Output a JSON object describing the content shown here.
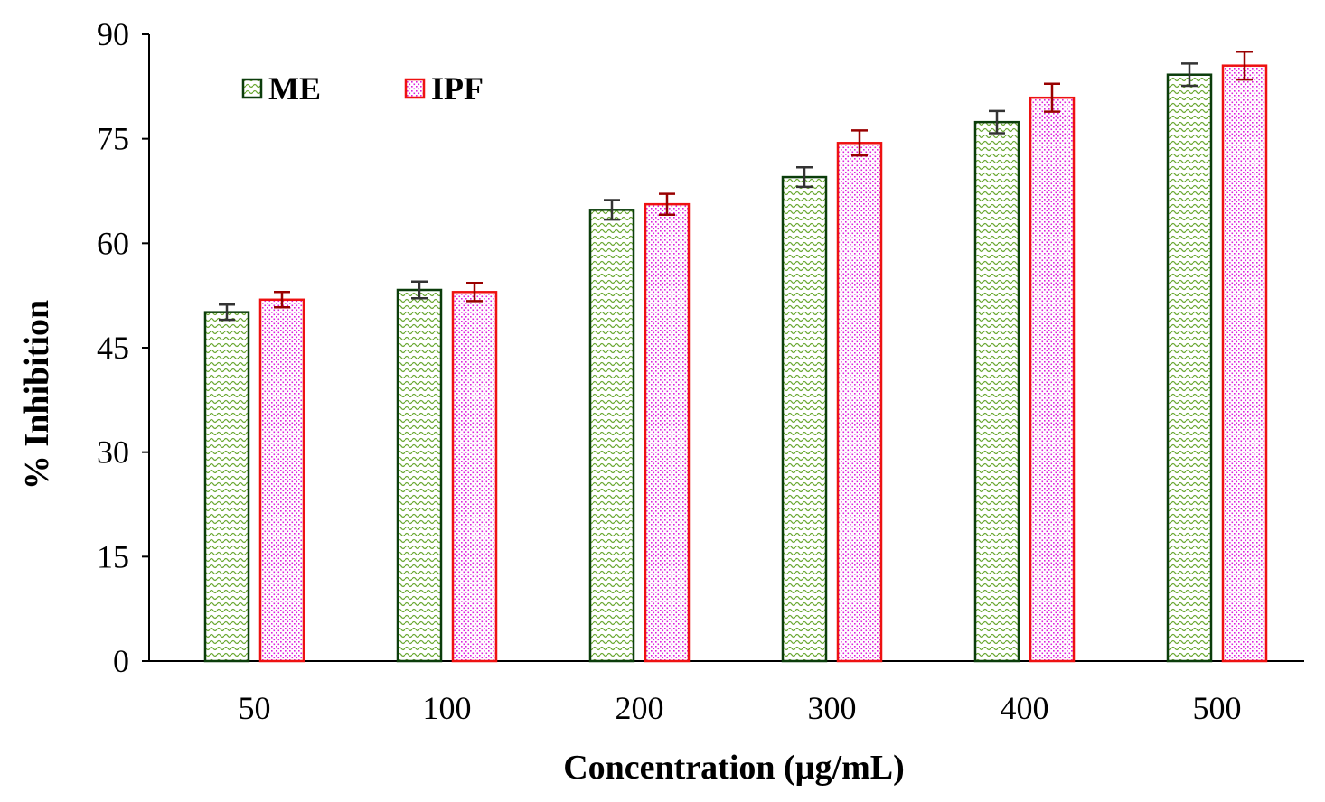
{
  "chart_data": {
    "type": "bar",
    "title": "",
    "xlabel": "Concentration (µg/mL)",
    "ylabel": "% Inhibition",
    "ylim": [
      0,
      90
    ],
    "yticks": [
      0,
      15,
      30,
      45,
      60,
      75,
      90
    ],
    "grid": false,
    "legend_position": "top-left",
    "categories": [
      "50",
      "100",
      "200",
      "300",
      "400",
      "500"
    ],
    "series": [
      {
        "name": "ME",
        "values": [
          50.1,
          53.3,
          64.8,
          69.5,
          77.4,
          84.2
        ],
        "errors": [
          1.1,
          1.2,
          1.4,
          1.4,
          1.6,
          1.6
        ],
        "stroke": "#0b3d0b",
        "pattern_color": "#6aa832",
        "error_color": "#333333",
        "pattern": "wave"
      },
      {
        "name": "IPF",
        "values": [
          51.9,
          53.0,
          65.6,
          74.4,
          80.9,
          85.5
        ],
        "errors": [
          1.1,
          1.3,
          1.5,
          1.8,
          2.0,
          2.0
        ],
        "stroke": "#ee1111",
        "pattern_color": "#dd22dd",
        "error_color": "#990000",
        "pattern": "dots"
      }
    ]
  }
}
